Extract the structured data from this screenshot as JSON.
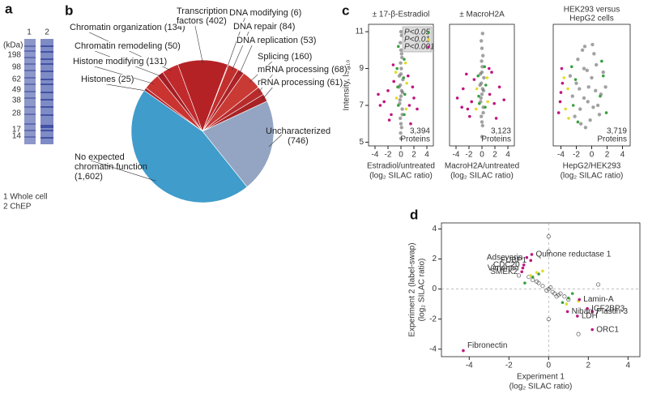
{
  "panels": [
    "a",
    "b",
    "c",
    "d"
  ],
  "gel": {
    "lanes": [
      "1",
      "2"
    ],
    "unit": "(kDa)",
    "markers": [
      198,
      98,
      62,
      49,
      38,
      28,
      17,
      14
    ],
    "legend": [
      "1 Whole cell",
      "2 ChEP"
    ]
  },
  "chart_data": [
    {
      "type": "pie",
      "categories": [
        "Histones",
        "Histone modifying",
        "Chromatin remodeling",
        "Chromatin organization",
        "Transcription factors",
        "DNA modifying",
        "DNA repair",
        "DNA replication",
        "Splicing",
        "mRNA processing",
        "rRNA processing",
        "Uncharacterized",
        "No expected chromatin function"
      ],
      "values": [
        25,
        131,
        50,
        134,
        402,
        6,
        84,
        53,
        160,
        68,
        61,
        746,
        1602
      ],
      "value_labels": [
        "(25)",
        "(131)",
        "(50)",
        "(134)",
        "(402)",
        "(6)",
        "(84)",
        "(53)",
        "(160)",
        "(68)",
        "(61)",
        "(746)",
        "(1,602)"
      ],
      "colors": [
        "#b8262a",
        "#c93330",
        "#a51e24",
        "#c12a2c",
        "#b52226",
        "#d6453c",
        "#c2302e",
        "#ad2227",
        "#c93a34",
        "#b82b2c",
        "#a82326",
        "#93a5c2",
        "#3f9ccb"
      ]
    },
    {
      "type": "scatter",
      "title": [
        "± 17-β-Estradiol"
      ],
      "xlabel": [
        "Estradiol/untreated",
        "(log₂ SILAC ratio)"
      ],
      "ylabel": "Intensity, log₁₀",
      "xlim": [
        -5,
        5
      ],
      "ylim": [
        4.8,
        11.4
      ],
      "xticks": [
        -4,
        -2,
        0,
        2,
        4
      ],
      "yticks": [
        5,
        7,
        9,
        11
      ],
      "annotation": [
        "3,394",
        "Proteins"
      ],
      "legend": "upper right",
      "series": [
        {
          "color": "#555555",
          "x": [
            0,
            0.1,
            -0.1,
            0.2,
            -0.2,
            0,
            0.1,
            -0.1,
            0.3,
            -0.3,
            0,
            0.05,
            -0.05,
            0.15,
            -0.15,
            0.2,
            0,
            -0.1,
            0.1,
            0,
            0.25,
            -0.25,
            0,
            0.1,
            -0.05
          ],
          "values": [
            5.2,
            5.8,
            6.3,
            6.8,
            7.1,
            7.5,
            7.8,
            8.1,
            8.4,
            8.0,
            8.7,
            9.0,
            9.3,
            9.6,
            7.3,
            6.5,
            10.0,
            10.4,
            10.8,
            11.0,
            7.7,
            8.6,
            6.0,
            9.8,
            5.5
          ]
        },
        {
          "name": "P<0.05",
          "color": "#3aa040",
          "x": [
            0.5,
            -0.4,
            0.6,
            -0.5,
            0.4,
            -0.6,
            0.5,
            -0.4
          ],
          "values": [
            6.5,
            7.0,
            7.6,
            8.0,
            8.5,
            9.0,
            9.5,
            10.2
          ]
        },
        {
          "name": "P<0.01",
          "color": "#e3dc2c",
          "x": [
            0.8,
            -0.7,
            0.9,
            -0.8,
            0.7
          ],
          "values": [
            6.8,
            7.4,
            8.2,
            8.8,
            9.3
          ]
        },
        {
          "name": "P<0.001",
          "color": "#c0157f",
          "x": [
            -3.2,
            -2.0,
            -1.5,
            -1.1,
            -2.6,
            1.3,
            1.8,
            2.5,
            1.1,
            -1.8,
            -3.5,
            2.0,
            -1.2,
            1.5
          ],
          "values": [
            7.0,
            7.8,
            6.5,
            8.3,
            7.2,
            7.0,
            8.0,
            6.8,
            8.6,
            6.2,
            7.6,
            7.4,
            9.2,
            6.0
          ]
        }
      ]
    },
    {
      "type": "scatter",
      "title": [
        "± MacroH2A"
      ],
      "xlabel": [
        "MacroH2A/untreated",
        "(log₂ SILAC ratio)"
      ],
      "xlim": [
        -5,
        5
      ],
      "ylim": [
        4.8,
        11.4
      ],
      "xticks": [
        -4,
        -2,
        0,
        2,
        4
      ],
      "annotation": [
        "3,123",
        "Proteins"
      ],
      "series": [
        {
          "color": "#555555",
          "x": [
            0,
            0.1,
            -0.1,
            0.2,
            -0.2,
            0,
            0.1,
            -0.1,
            0.3,
            -0.3,
            0,
            0.05,
            -0.05,
            0.15,
            -0.15,
            0.2,
            0,
            -0.1,
            0.1,
            0.25,
            -0.25,
            0
          ],
          "values": [
            5.3,
            5.9,
            6.4,
            6.9,
            7.2,
            7.6,
            7.9,
            8.2,
            8.5,
            8.1,
            8.8,
            9.1,
            9.4,
            9.7,
            7.4,
            6.6,
            10.1,
            10.5,
            10.9,
            7.8,
            8.7,
            6.1
          ]
        },
        {
          "color": "#3aa040",
          "x": [
            0.5,
            -0.5,
            0.6,
            -0.6,
            0.4,
            -0.4
          ],
          "values": [
            6.9,
            7.5,
            8.1,
            8.6,
            9.1,
            7.1
          ]
        },
        {
          "color": "#e3dc2c",
          "x": [
            0.9,
            -0.8,
            0.8,
            -0.9
          ],
          "values": [
            7.2,
            7.9,
            8.5,
            6.8
          ]
        },
        {
          "color": "#c0157f",
          "x": [
            -3.8,
            -2.9,
            -2.2,
            -1.6,
            -1.2,
            -2.4,
            1.2,
            1.9,
            2.7,
            3.4,
            1.5,
            -1.9,
            2.2,
            -3.1,
            1.1
          ],
          "values": [
            7.4,
            7.9,
            6.8,
            7.2,
            8.4,
            8.7,
            7.6,
            7.1,
            8.0,
            7.3,
            8.8,
            6.4,
            6.3,
            6.9,
            9.0
          ]
        }
      ]
    },
    {
      "type": "scatter",
      "title": [
        "HEK293 versus",
        "HepG2 cells"
      ],
      "xlabel": [
        "HepG2/HEK293",
        "(log₂ SILAC ratio)"
      ],
      "xlim": [
        -5,
        5
      ],
      "ylim": [
        4.8,
        11.4
      ],
      "xticks": [
        -4,
        -2,
        0,
        2,
        4
      ],
      "annotation": [
        "3,719",
        "Proteins"
      ],
      "series": [
        {
          "color": "#555555",
          "x": [
            -2.5,
            -2.0,
            -1.5,
            -1.0,
            -0.5,
            0,
            0.5,
            1.0,
            1.5,
            -1.8,
            -1.2,
            -0.8,
            -0.2,
            0.3,
            0.8,
            -2.2,
            -1.6,
            -0.6,
            0.1,
            1.2,
            -1.0,
            -0.4,
            0.6,
            -1.4,
            -0.9,
            0.2,
            1.8,
            -2.8
          ],
          "values": [
            7.5,
            8.2,
            6.8,
            9.0,
            7.2,
            8.5,
            7.8,
            6.5,
            8.8,
            9.5,
            10.0,
            5.8,
            6.2,
            9.8,
            7.0,
            6.4,
            7.9,
            8.9,
            10.3,
            7.6,
            7.4,
            8.0,
            9.2,
            6.0,
            10.2,
            6.9,
            8.0,
            8.6
          ]
        },
        {
          "color": "#3aa040",
          "x": [
            -2.4,
            -2.1,
            -1.8,
            1.1,
            1.5,
            1.9,
            -2.6,
            1.3
          ],
          "values": [
            7.0,
            8.4,
            6.1,
            7.5,
            8.6,
            6.6,
            9.1,
            9.4
          ]
        },
        {
          "color": "#e3dc2c",
          "x": [
            -3.4,
            -3.1,
            -3.6,
            -3.0
          ],
          "values": [
            6.8,
            7.9,
            8.5,
            6.3
          ]
        },
        {
          "color": "#c0157f",
          "x": [
            -4.1,
            -3.8,
            -4.3,
            -3.9,
            -4.0
          ],
          "values": [
            7.2,
            8.2,
            6.6,
            9.0,
            7.7
          ]
        }
      ]
    },
    {
      "type": "scatter",
      "xlabel": [
        "Experiment 1",
        "(log₂ SILAC ratio)"
      ],
      "ylabel": [
        "Experiment 2 (label-swap)",
        "(log₂ SILAC ratio)"
      ],
      "xlim": [
        -5.4,
        4.6
      ],
      "ylim": [
        -4.5,
        4.4
      ],
      "xticks": [
        -4,
        -2,
        0,
        2,
        4
      ],
      "yticks": [
        -4,
        -2,
        0,
        2,
        4
      ],
      "zero_lines": true,
      "open_markers": true,
      "series": [
        {
          "color": "#555555",
          "x": [
            -1,
            -0.5,
            0,
            0.5,
            1,
            -0.3,
            0.3,
            0.8,
            -0.8,
            0.1,
            -0.1,
            0.6,
            -0.6,
            0.2,
            0,
            1.5,
            -1.5,
            0,
            0,
            2.5,
            0.4
          ],
          "values": [
            0.8,
            0.4,
            0,
            -0.4,
            -0.7,
            0.2,
            -0.3,
            -0.5,
            0.6,
            0.1,
            -0.1,
            -0.3,
            0.5,
            -0.2,
            2.5,
            -3.0,
            0.9,
            -2.0,
            3.5,
            0.3,
            -0.5
          ]
        },
        {
          "color": "#3aa040",
          "x": [
            -0.8,
            -0.5,
            1.0,
            0.7,
            -1.2,
            1.2
          ],
          "values": [
            0.8,
            1.0,
            -0.6,
            -0.9,
            0.4,
            -0.3
          ]
        },
        {
          "color": "#e3dc2c",
          "x": [
            -0.6,
            -0.9,
            0.9,
            1.5,
            -0.3
          ],
          "values": [
            1.1,
            0.9,
            -1.0,
            -0.8,
            1.2
          ]
        },
        {
          "color": "#c0157f",
          "x": [
            -4.3,
            2.2,
            2.2,
            1.95,
            1.45,
            0.95,
            1.55,
            -1.1,
            -0.85,
            -0.9,
            -1.25,
            -1.3,
            -1.35
          ],
          "values": [
            -4.1,
            -2.7,
            -1.5,
            -1.3,
            -1.8,
            -1.5,
            -0.7,
            2.1,
            2.3,
            1.9,
            1.6,
            1.4,
            1.15
          ],
          "point_labels": [
            "Fibronectin",
            "ORC1",
            "Plastin-3",
            "IGF2BP3",
            "LDH",
            "Niban",
            "Lamin-A",
            "Adseverin",
            "Quinone reductase 1",
            "FUBP1",
            "CDC20",
            "Vimentin",
            "SMEK2"
          ]
        }
      ]
    }
  ]
}
